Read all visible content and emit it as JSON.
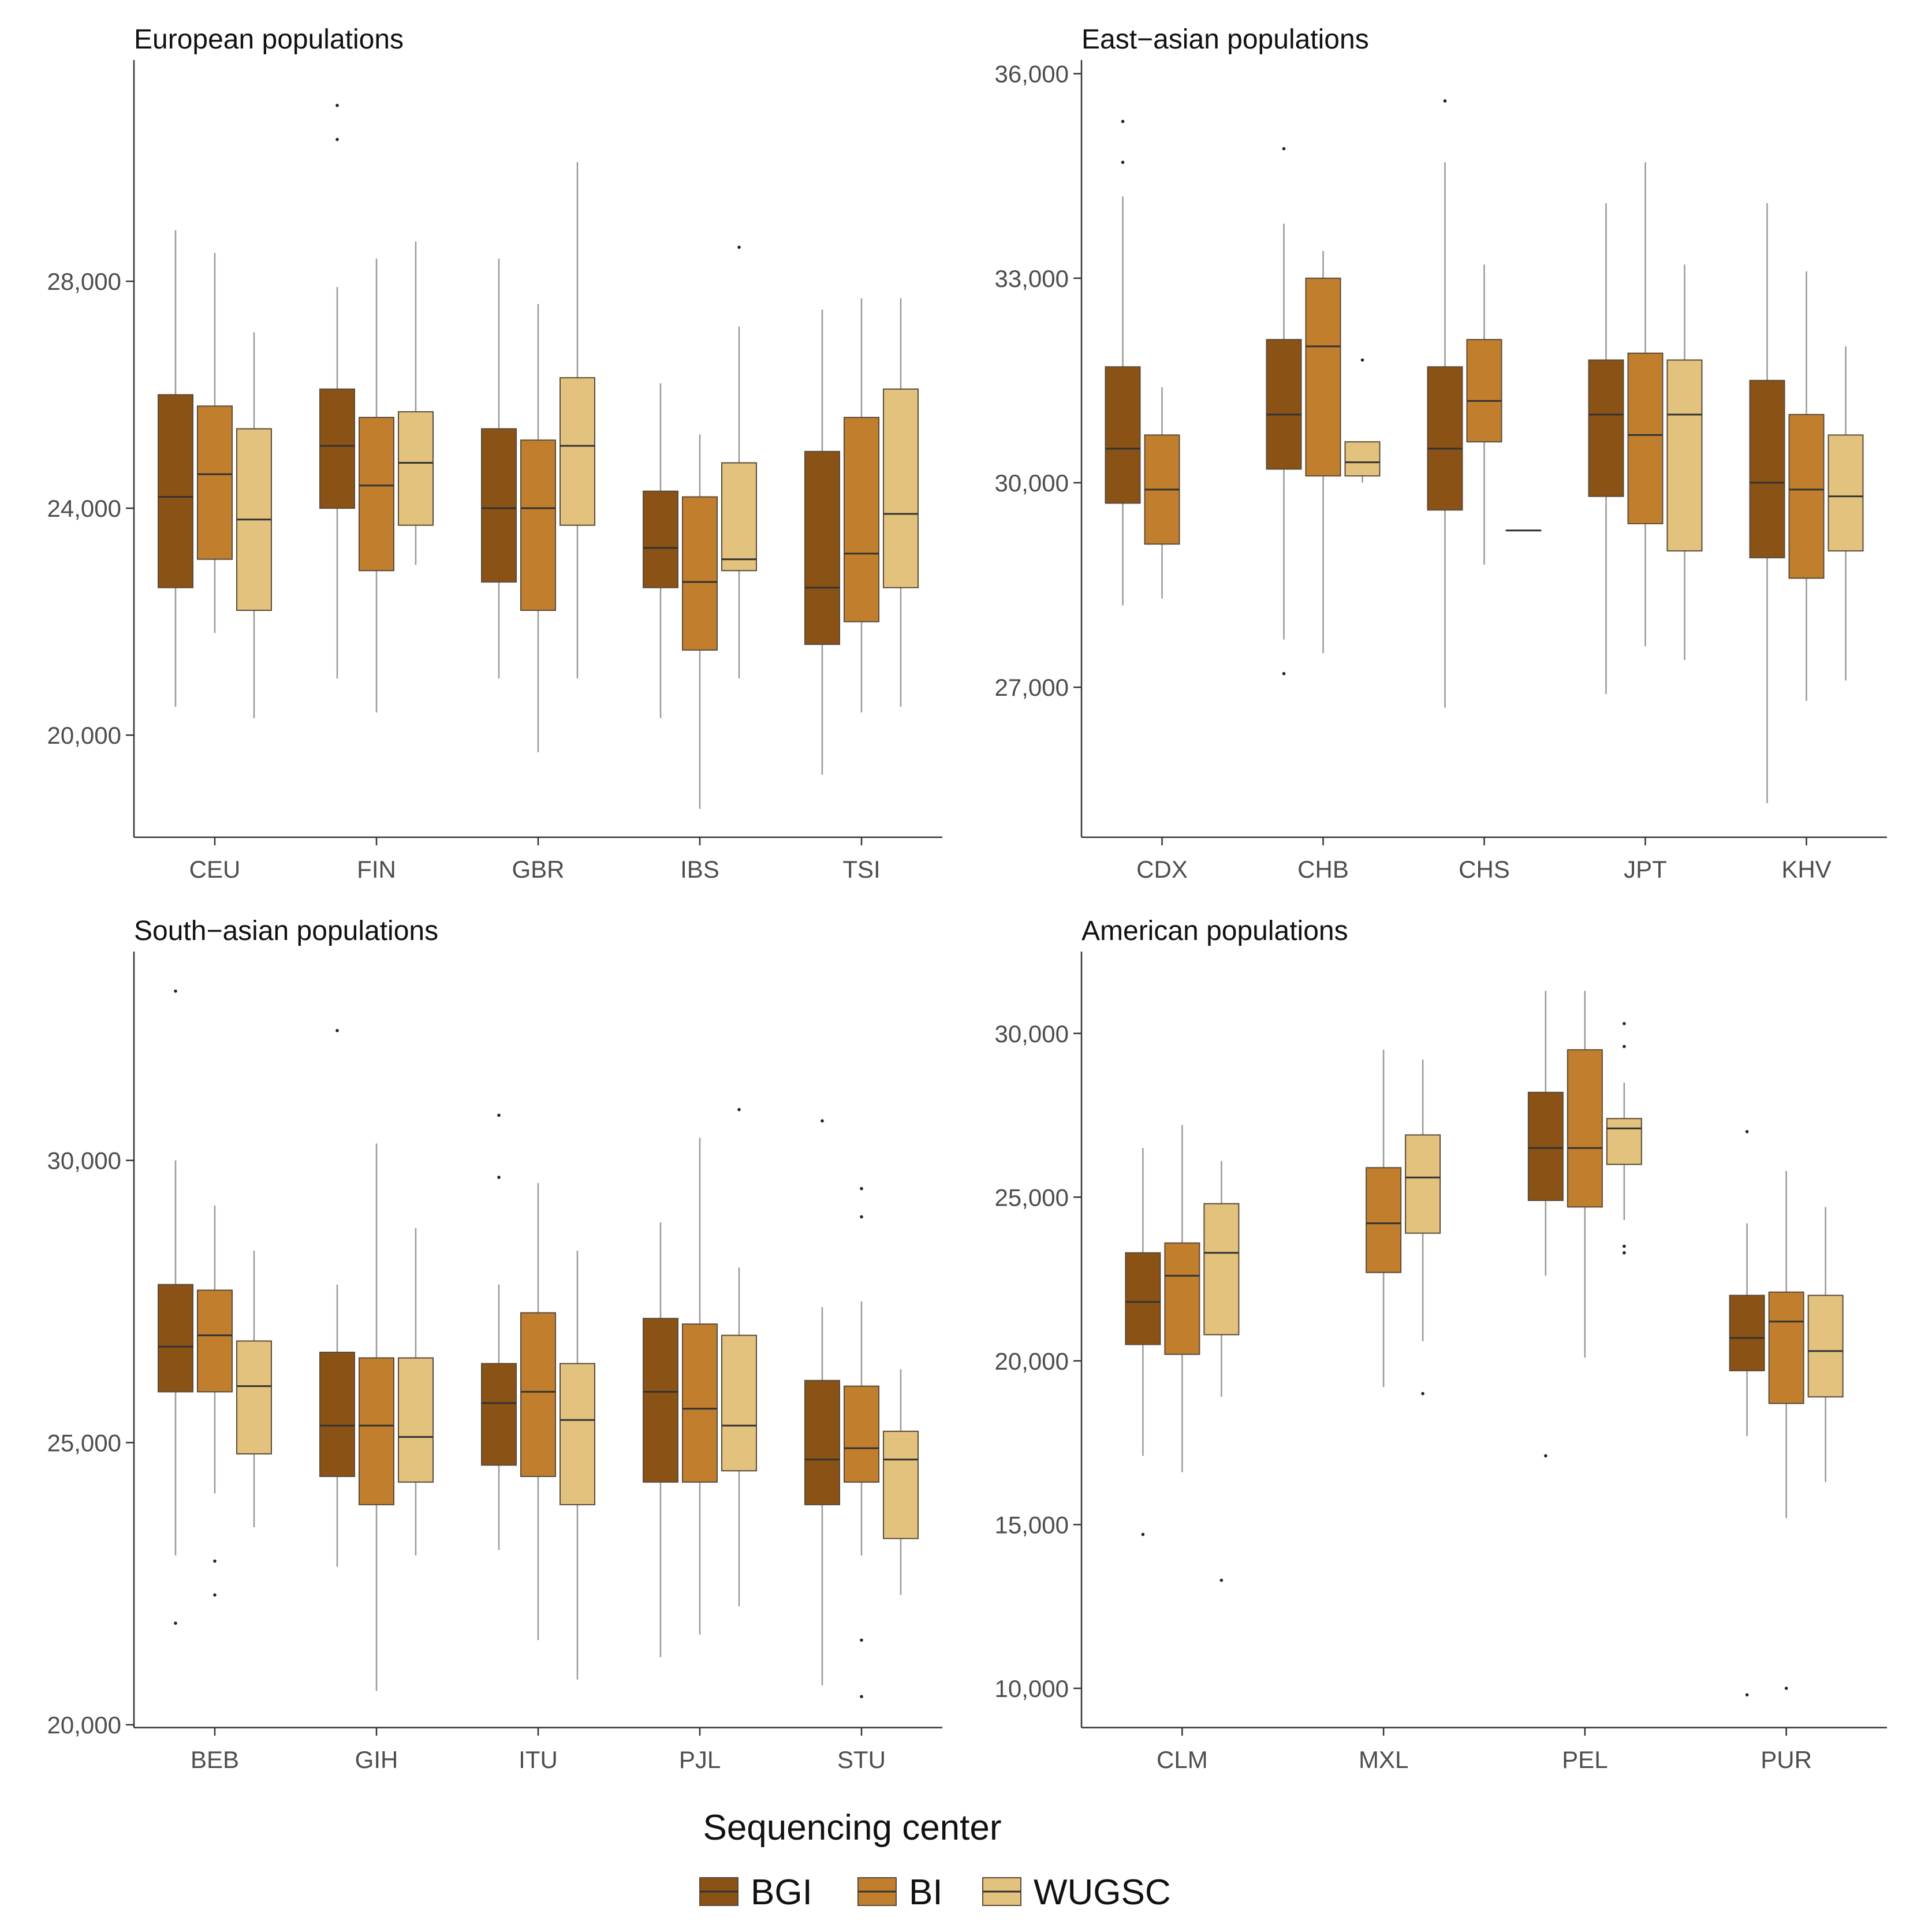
{
  "colors": {
    "BGI": "#8b5215",
    "BI": "#c17f2e",
    "WUGSC": "#e2c27c",
    "axis": "#333333",
    "whisker": "#999999",
    "median": "#333333"
  },
  "legend": {
    "title": "Sequencing center",
    "entries": [
      "BGI",
      "BI",
      "WUGSC"
    ]
  },
  "chart_data": [
    {
      "type": "boxplot",
      "title": "European populations",
      "xlabel": "",
      "ylabel": "",
      "ylim": [
        18200,
        31900
      ],
      "yticks": [
        20000,
        24000,
        28000
      ],
      "ytick_labels": [
        "20,000",
        "24,000",
        "28,000"
      ],
      "categories": [
        "CEU",
        "FIN",
        "GBR",
        "IBS",
        "TSI"
      ],
      "series": [
        {
          "name": "BGI",
          "boxes": [
            {
              "low": 20500,
              "q1": 22600,
              "median": 24200,
              "q3": 26000,
              "high": 28900,
              "outliers": []
            },
            {
              "low": 21000,
              "q1": 24000,
              "median": 25100,
              "q3": 26100,
              "high": 27900,
              "outliers": [
                30500,
                31100
              ]
            },
            {
              "low": 21000,
              "q1": 22700,
              "median": 24000,
              "q3": 25400,
              "high": 28400,
              "outliers": []
            },
            {
              "low": 20300,
              "q1": 22600,
              "median": 23300,
              "q3": 24300,
              "high": 26200,
              "outliers": []
            },
            {
              "low": 19300,
              "q1": 21600,
              "median": 22600,
              "q3": 25000,
              "high": 27500,
              "outliers": []
            }
          ]
        },
        {
          "name": "BI",
          "boxes": [
            {
              "low": 21800,
              "q1": 23100,
              "median": 24600,
              "q3": 25800,
              "high": 28500,
              "outliers": []
            },
            {
              "low": 20400,
              "q1": 22900,
              "median": 24400,
              "q3": 25600,
              "high": 28400,
              "outliers": []
            },
            {
              "low": 19700,
              "q1": 22200,
              "median": 24000,
              "q3": 25200,
              "high": 27600,
              "outliers": []
            },
            {
              "low": 18700,
              "q1": 21500,
              "median": 22700,
              "q3": 24200,
              "high": 25300,
              "outliers": []
            },
            {
              "low": 20400,
              "q1": 22000,
              "median": 23200,
              "q3": 25600,
              "high": 27700,
              "outliers": []
            }
          ]
        },
        {
          "name": "WUGSC",
          "boxes": [
            {
              "low": 20300,
              "q1": 22200,
              "median": 23800,
              "q3": 25400,
              "high": 27100,
              "outliers": []
            },
            {
              "low": 23000,
              "q1": 23700,
              "median": 24800,
              "q3": 25700,
              "high": 28700,
              "outliers": []
            },
            {
              "low": 21000,
              "q1": 23700,
              "median": 25100,
              "q3": 26300,
              "high": 30100,
              "outliers": []
            },
            {
              "low": 21000,
              "q1": 22900,
              "median": 23100,
              "q3": 24800,
              "high": 27200,
              "outliers": [
                28600
              ]
            },
            {
              "low": 20500,
              "q1": 22600,
              "median": 23900,
              "q3": 26100,
              "high": 27700,
              "outliers": []
            }
          ]
        }
      ]
    },
    {
      "type": "boxplot",
      "title": "East−asian populations",
      "xlabel": "",
      "ylabel": "",
      "ylim": [
        24800,
        36200
      ],
      "yticks": [
        27000,
        30000,
        33000,
        36000
      ],
      "ytick_labels": [
        "27,000",
        "30,000",
        "33,000",
        "36,000"
      ],
      "categories": [
        "CDX",
        "CHB",
        "CHS",
        "JPT",
        "KHV"
      ],
      "series": [
        {
          "name": "BGI",
          "boxes": [
            {
              "low": 28200,
              "q1": 29700,
              "median": 30500,
              "q3": 31700,
              "high": 34200,
              "outliers": [
                34700,
                35300
              ]
            },
            {
              "low": 27700,
              "q1": 30200,
              "median": 31000,
              "q3": 32100,
              "high": 33800,
              "outliers": [
                27200,
                34900
              ]
            },
            {
              "low": 26700,
              "q1": 29600,
              "median": 30500,
              "q3": 31700,
              "high": 34700,
              "outliers": [
                35600
              ]
            },
            {
              "low": 26900,
              "q1": 29800,
              "median": 31000,
              "q3": 31800,
              "high": 34100,
              "outliers": []
            },
            {
              "low": 25300,
              "q1": 28900,
              "median": 30000,
              "q3": 31500,
              "high": 34100,
              "outliers": []
            }
          ]
        },
        {
          "name": "BI",
          "boxes": [
            {
              "low": 28300,
              "q1": 29100,
              "median": 29900,
              "q3": 30700,
              "high": 31400,
              "outliers": []
            },
            {
              "low": 27500,
              "q1": 30100,
              "median": 32000,
              "q3": 33000,
              "high": 33400,
              "outliers": []
            },
            {
              "low": 28800,
              "q1": 30600,
              "median": 31200,
              "q3": 32100,
              "high": 33200,
              "outliers": []
            },
            {
              "low": 27600,
              "q1": 29400,
              "median": 30700,
              "q3": 31900,
              "high": 34700,
              "outliers": []
            },
            {
              "low": 26800,
              "q1": 28600,
              "median": 29900,
              "q3": 31000,
              "high": 33100,
              "outliers": []
            }
          ]
        },
        {
          "name": "WUGSC",
          "boxes": [
            null,
            {
              "low": 30000,
              "q1": 30100,
              "median": 30300,
              "q3": 30600,
              "high": 30600,
              "outliers": [
                31800
              ]
            },
            {
              "low": 29300,
              "q1": 29300,
              "median": 29300,
              "q3": 29300,
              "high": 29300,
              "outliers": []
            },
            {
              "low": 27400,
              "q1": 29000,
              "median": 31000,
              "q3": 31800,
              "high": 33200,
              "outliers": []
            },
            {
              "low": 27100,
              "q1": 29000,
              "median": 29800,
              "q3": 30700,
              "high": 32000,
              "outliers": []
            }
          ]
        }
      ]
    },
    {
      "type": "boxplot",
      "title": "South−asian populations",
      "xlabel": "",
      "ylabel": "",
      "ylim": [
        19950,
        33700
      ],
      "yticks": [
        20000,
        25000,
        30000
      ],
      "ytick_labels": [
        "20,000",
        "25,000",
        "30,000"
      ],
      "categories": [
        "BEB",
        "GIH",
        "ITU",
        "PJL",
        "STU"
      ],
      "series": [
        {
          "name": "BGI",
          "boxes": [
            {
              "low": 23000,
              "q1": 25900,
              "median": 26700,
              "q3": 27800,
              "high": 30000,
              "outliers": [
                21800,
                33000
              ]
            },
            {
              "low": 22800,
              "q1": 24400,
              "median": 25300,
              "q3": 26600,
              "high": 27800,
              "outliers": [
                32300
              ]
            },
            {
              "low": 23100,
              "q1": 24600,
              "median": 25700,
              "q3": 26400,
              "high": 27800,
              "outliers": [
                29700,
                30800
              ]
            },
            {
              "low": 21200,
              "q1": 24300,
              "median": 25900,
              "q3": 27200,
              "high": 28900,
              "outliers": []
            },
            {
              "low": 20700,
              "q1": 23900,
              "median": 24700,
              "q3": 26100,
              "high": 27400,
              "outliers": [
                30700
              ]
            }
          ]
        },
        {
          "name": "BI",
          "boxes": [
            {
              "low": 24100,
              "q1": 25900,
              "median": 26900,
              "q3": 27700,
              "high": 29200,
              "outliers": [
                22300,
                22900
              ]
            },
            {
              "low": 20600,
              "q1": 23900,
              "median": 25300,
              "q3": 26500,
              "high": 30300,
              "outliers": []
            },
            {
              "low": 21500,
              "q1": 24400,
              "median": 25900,
              "q3": 27300,
              "high": 29600,
              "outliers": []
            },
            {
              "low": 21600,
              "q1": 24300,
              "median": 25600,
              "q3": 27100,
              "high": 30400,
              "outliers": []
            },
            {
              "low": 23000,
              "q1": 24300,
              "median": 24900,
              "q3": 26000,
              "high": 27500,
              "outliers": [
                20500,
                21500,
                29000,
                29500
              ]
            }
          ]
        },
        {
          "name": "WUGSC",
          "boxes": [
            {
              "low": 23500,
              "q1": 24800,
              "median": 26000,
              "q3": 26800,
              "high": 28400,
              "outliers": []
            },
            {
              "low": 23000,
              "q1": 24300,
              "median": 25100,
              "q3": 26500,
              "high": 28800,
              "outliers": []
            },
            {
              "low": 20800,
              "q1": 23900,
              "median": 25400,
              "q3": 26400,
              "high": 28400,
              "outliers": []
            },
            {
              "low": 22100,
              "q1": 24500,
              "median": 25300,
              "q3": 26900,
              "high": 28100,
              "outliers": [
                30900
              ]
            },
            {
              "low": 22300,
              "q1": 23300,
              "median": 24700,
              "q3": 25200,
              "high": 26300,
              "outliers": []
            }
          ]
        }
      ]
    },
    {
      "type": "boxplot",
      "title": "American populations",
      "xlabel": "",
      "ylabel": "",
      "ylim": [
        8800,
        32500
      ],
      "yticks": [
        10000,
        15000,
        20000,
        25000,
        30000
      ],
      "ytick_labels": [
        "10,000",
        "15,000",
        "20,000",
        "25,000",
        "30,000"
      ],
      "categories": [
        "CLM",
        "MXL",
        "PEL",
        "PUR"
      ],
      "series": [
        {
          "name": "BGI",
          "boxes": [
            {
              "low": 17100,
              "q1": 20500,
              "median": 21800,
              "q3": 23300,
              "high": 26500,
              "outliers": [
                14700
              ]
            },
            null,
            {
              "low": 22600,
              "q1": 24900,
              "median": 26500,
              "q3": 28200,
              "high": 31300,
              "outliers": [
                17100
              ]
            },
            {
              "low": 17700,
              "q1": 19700,
              "median": 20700,
              "q3": 22000,
              "high": 24200,
              "outliers": [
                9800,
                27000
              ]
            }
          ]
        },
        {
          "name": "BI",
          "boxes": [
            {
              "low": 16600,
              "q1": 20200,
              "median": 22600,
              "q3": 23600,
              "high": 27200,
              "outliers": []
            },
            {
              "low": 19200,
              "q1": 22700,
              "median": 24200,
              "q3": 25900,
              "high": 29500,
              "outliers": []
            },
            {
              "low": 20100,
              "q1": 24700,
              "median": 26500,
              "q3": 29500,
              "high": 31300,
              "outliers": []
            },
            {
              "low": 15200,
              "q1": 18700,
              "median": 21200,
              "q3": 22100,
              "high": 25800,
              "outliers": [
                10000
              ]
            }
          ]
        },
        {
          "name": "WUGSC",
          "boxes": [
            {
              "low": 18900,
              "q1": 20800,
              "median": 23300,
              "q3": 24800,
              "high": 26100,
              "outliers": [
                13300
              ]
            },
            {
              "low": 20600,
              "q1": 23900,
              "median": 25600,
              "q3": 26900,
              "high": 29200,
              "outliers": [
                19000
              ]
            },
            {
              "low": 24300,
              "q1": 26000,
              "median": 27100,
              "q3": 27400,
              "high": 28500,
              "outliers": [
                23300,
                23500,
                29600,
                30300
              ]
            },
            {
              "low": 16300,
              "q1": 18900,
              "median": 20300,
              "q3": 22000,
              "high": 24700,
              "outliers": []
            }
          ]
        }
      ]
    }
  ]
}
